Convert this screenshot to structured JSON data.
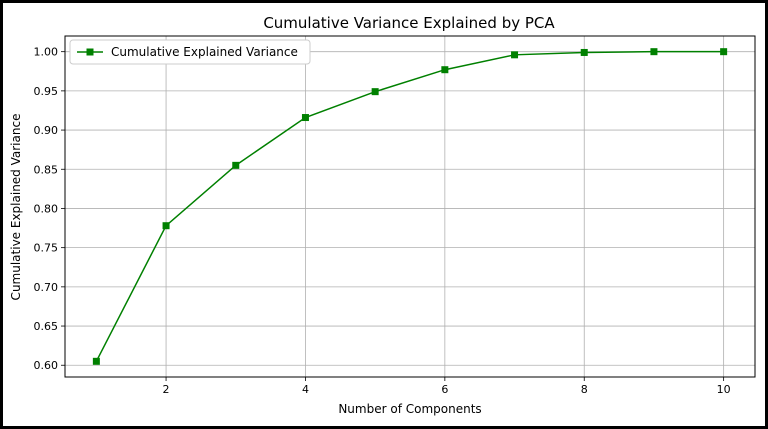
{
  "chart_data": {
    "type": "line",
    "title": "Cumulative Variance Explained by PCA",
    "xlabel": "Number of Components",
    "ylabel": "Cumulative Explained Variance",
    "x": [
      1,
      2,
      3,
      4,
      5,
      6,
      7,
      8,
      9,
      10
    ],
    "series": [
      {
        "name": "Cumulative Explained Variance",
        "values": [
          0.605,
          0.778,
          0.855,
          0.916,
          0.949,
          0.977,
          0.996,
          0.999,
          1.0,
          1.0
        ],
        "color": "#008000",
        "marker": "square"
      }
    ],
    "xticks": [
      2,
      4,
      6,
      8,
      10
    ],
    "yticks": [
      0.6,
      0.65,
      0.7,
      0.75,
      0.8,
      0.85,
      0.9,
      0.95,
      1.0
    ],
    "xtick_labels": [
      "2",
      "4",
      "6",
      "8",
      "10"
    ],
    "ytick_labels": [
      "0.60",
      "0.65",
      "0.70",
      "0.75",
      "0.80",
      "0.85",
      "0.90",
      "0.95",
      "1.00"
    ],
    "xlim": [
      0.55,
      10.45
    ],
    "ylim": [
      0.585,
      1.02
    ],
    "grid": true,
    "legend_position": "top-left"
  }
}
